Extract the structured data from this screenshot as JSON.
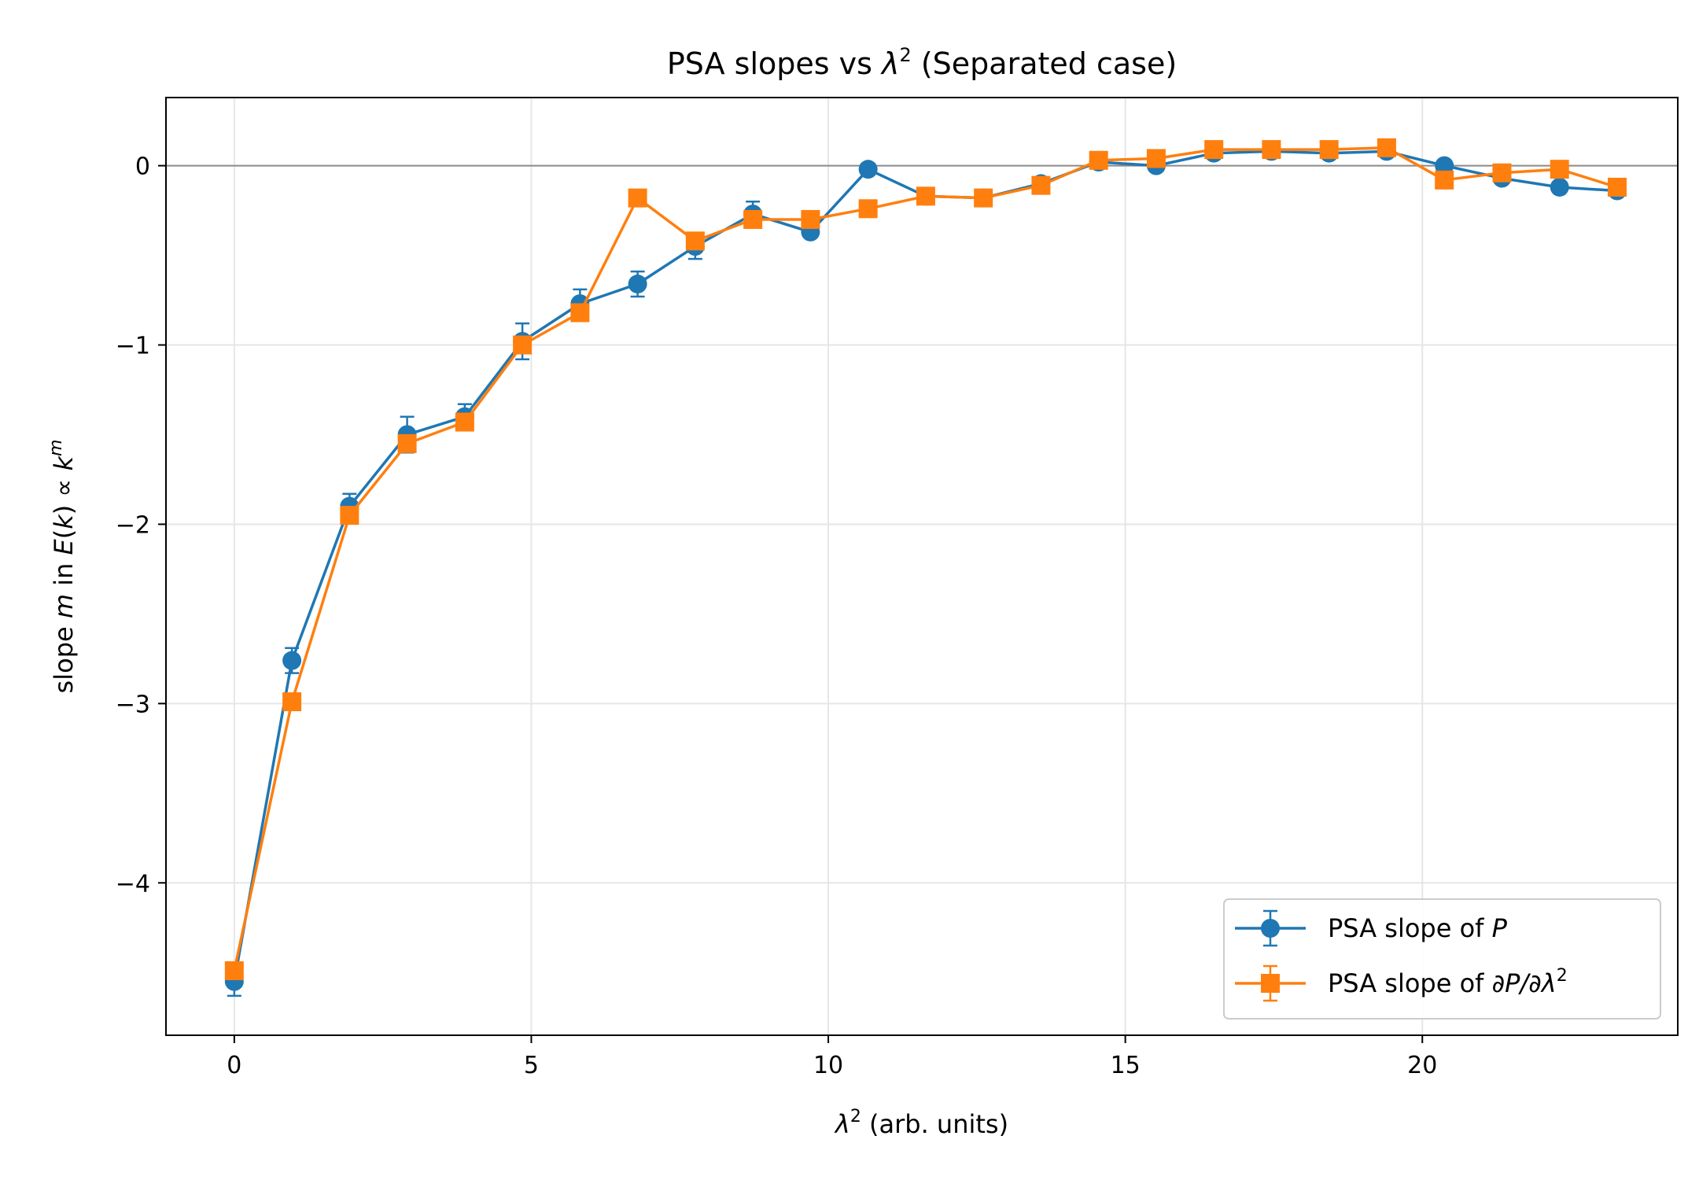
{
  "chart_data": {
    "type": "line",
    "title": {
      "prefix": "PSA slopes vs ",
      "symbol": "λ",
      "sup": "2",
      "suffix": " (Separated case)"
    },
    "xlabel": {
      "symbol": "λ",
      "sup": "2",
      "text": " (arb. units)"
    },
    "ylabel": {
      "t1": "slope ",
      "m": "m",
      "t2": " in ",
      "E": "E",
      "t3": "(",
      "k1": "k",
      "t4": ") ∝ ",
      "k2": "k",
      "sup": "m"
    },
    "xlim": [
      -1.15,
      24.3
    ],
    "ylim": [
      -4.85,
      0.38
    ],
    "xticks": [
      {
        "value": 0,
        "label": "0"
      },
      {
        "value": 5,
        "label": "5"
      },
      {
        "value": 10,
        "label": "10"
      },
      {
        "value": 15,
        "label": "15"
      },
      {
        "value": 20,
        "label": "20"
      }
    ],
    "yticks": [
      {
        "value": 0,
        "label": "0"
      },
      {
        "value": -1,
        "label": "−1"
      },
      {
        "value": -2,
        "label": "−2"
      },
      {
        "value": -3,
        "label": "−3"
      },
      {
        "value": -4,
        "label": "−4"
      }
    ],
    "grid": true,
    "zero_line": true,
    "legend_position": "lower-right",
    "series": [
      {
        "legend_prefix": "PSA slope of ",
        "legend_math": "P",
        "legend_sup": "",
        "color": "#1f77b4",
        "marker": "circle",
        "x": [
          0,
          0.97,
          1.94,
          2.91,
          3.88,
          4.85,
          5.82,
          6.79,
          7.76,
          8.73,
          9.7,
          10.67,
          11.64,
          12.61,
          13.58,
          14.55,
          15.52,
          16.49,
          17.46,
          18.43,
          19.4,
          20.37,
          21.34,
          22.31,
          23.28
        ],
        "y": [
          -4.55,
          -2.76,
          -1.9,
          -1.5,
          -1.4,
          -0.98,
          -0.77,
          -0.66,
          -0.45,
          -0.27,
          -0.37,
          -0.02,
          -0.17,
          -0.18,
          -0.1,
          0.02,
          0.0,
          0.07,
          0.08,
          0.07,
          0.08,
          0.0,
          -0.07,
          -0.12,
          -0.14
        ],
        "yerr": [
          0.08,
          0.07,
          0.07,
          0.1,
          0.07,
          0.1,
          0.08,
          0.07,
          0.07,
          0.07,
          0.03,
          0.03,
          0.02,
          0.02,
          0.02,
          0.02,
          0.02,
          0.02,
          0.02,
          0.02,
          0.02,
          0.02,
          0.02,
          0.02,
          0.02
        ]
      },
      {
        "legend_prefix": "PSA slope of ",
        "legend_math": "∂P/∂λ",
        "legend_sup": "2",
        "color": "#ff7f0e",
        "marker": "square",
        "x": [
          0,
          0.97,
          1.94,
          2.91,
          3.88,
          4.85,
          5.82,
          6.79,
          7.76,
          8.73,
          9.7,
          10.67,
          11.64,
          12.61,
          13.58,
          14.55,
          15.52,
          16.49,
          17.46,
          18.43,
          19.4,
          20.37,
          21.34,
          22.31,
          23.28
        ],
        "y": [
          -4.49,
          -2.99,
          -1.95,
          -1.55,
          -1.43,
          -1.0,
          -0.82,
          -0.18,
          -0.42,
          -0.3,
          -0.3,
          -0.24,
          -0.17,
          -0.18,
          -0.11,
          0.03,
          0.04,
          0.09,
          0.09,
          0.09,
          0.1,
          -0.08,
          -0.04,
          -0.02,
          -0.12
        ]
      }
    ]
  }
}
